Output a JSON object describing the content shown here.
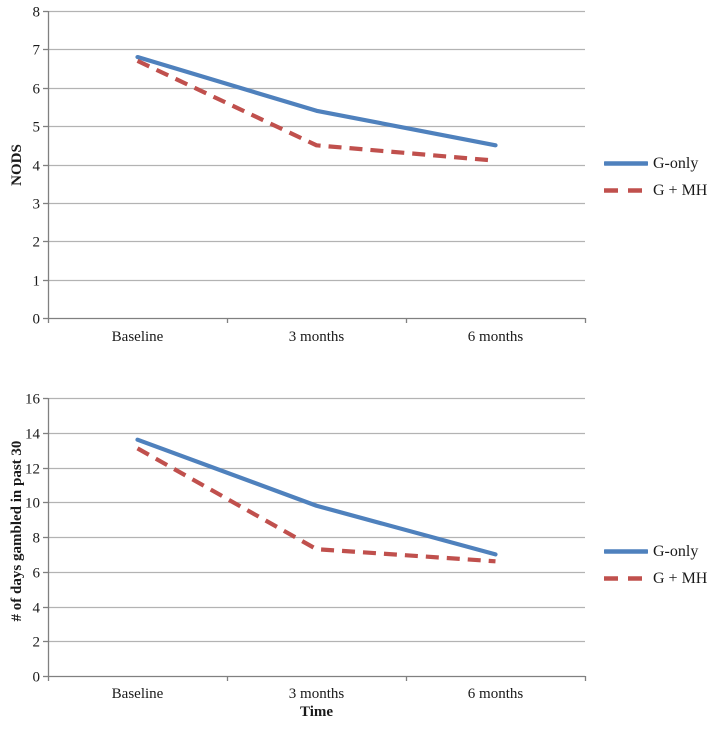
{
  "page": {
    "background_color": "#ffffff",
    "text_color": "#1a1a1a",
    "gridline_color": "#b3b3b3",
    "axis_color": "#808080"
  },
  "chart_data": [
    {
      "type": "line",
      "categories": [
        "Baseline",
        "3 months",
        "6 months"
      ],
      "series": [
        {
          "name": "G-only",
          "values": [
            6.8,
            5.4,
            4.5
          ],
          "color": "#4F81BD",
          "dash": false
        },
        {
          "name": "G + MH",
          "values": [
            6.7,
            4.5,
            4.1
          ],
          "color": "#C0504D",
          "dash": true
        }
      ],
      "title": "",
      "xlabel": "",
      "ylabel": "NODS",
      "ylim": [
        0,
        8
      ],
      "ytick_step": 1,
      "grid": true,
      "legend_position": "right"
    },
    {
      "type": "line",
      "categories": [
        "Baseline",
        "3 months",
        "6 months"
      ],
      "series": [
        {
          "name": "G-only",
          "values": [
            13.6,
            9.8,
            7.0
          ],
          "color": "#4F81BD",
          "dash": false
        },
        {
          "name": "G + MH",
          "values": [
            13.1,
            7.3,
            6.6
          ],
          "color": "#C0504D",
          "dash": true
        }
      ],
      "title": "",
      "xlabel": "Time",
      "ylabel": "# of days gambled in past 30",
      "ylim": [
        0,
        16
      ],
      "ytick_step": 2,
      "grid": true,
      "legend_position": "right"
    }
  ]
}
